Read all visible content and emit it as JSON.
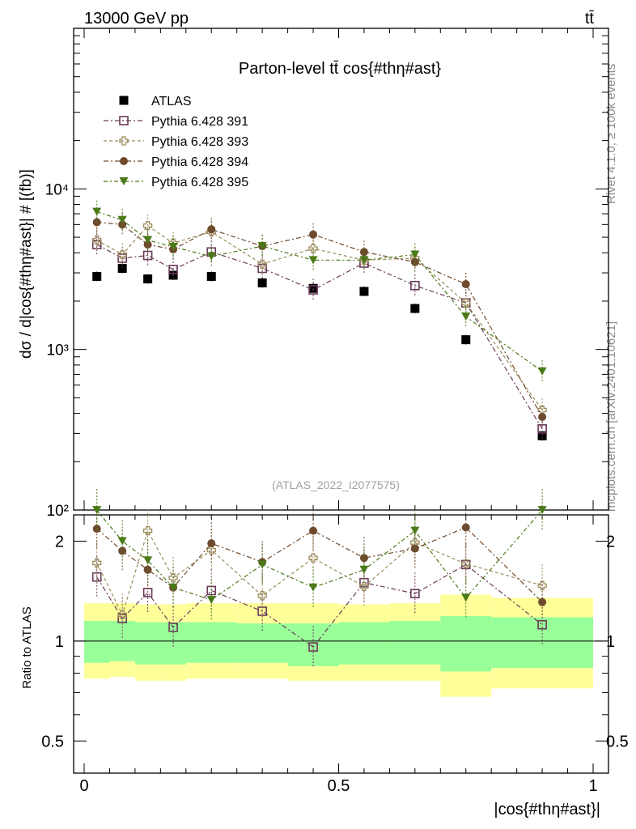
{
  "header": {
    "left": "13000 GeV pp",
    "right": "tt̄"
  },
  "side_labels": {
    "rivet": "Rivet 4.1.0, ≥ 100k events",
    "mcplots": "mcplots.cern.ch [arXiv:2401.10621]"
  },
  "chart_data": {
    "type": "scatter",
    "title": "Parton-level tt̄ cos{#thη#ast}",
    "watermark": "(ATLAS_2022_I2077575)",
    "xlabel": "|cos{#thη#ast}|",
    "ylabel": "dσ / d|cos{#thη#ast}| # [(fb)]",
    "ratio_ylabel": "Ratio to ATLAS",
    "xlim": [
      0,
      1
    ],
    "ylim": [
      100,
      100000
    ],
    "ratio_ylim": [
      0.4,
      2.4
    ],
    "yscale": "log",
    "legend_position": "top-left",
    "x_ticks": [
      {
        "v": 0,
        "label": "0"
      },
      {
        "v": 0.5,
        "label": "0.5"
      },
      {
        "v": 1,
        "label": "1"
      }
    ],
    "y_ticks": [
      {
        "v": 100,
        "label": "10²"
      },
      {
        "v": 1000,
        "label": "10³"
      },
      {
        "v": 10000,
        "label": "10⁴"
      }
    ],
    "ratio_ticks": [
      {
        "v": 0.5,
        "label": "0.5"
      },
      {
        "v": 1,
        "label": "1"
      },
      {
        "v": 2,
        "label": "2"
      }
    ],
    "bin_edges": [
      0,
      0.05,
      0.1,
      0.15,
      0.2,
      0.3,
      0.4,
      0.5,
      0.6,
      0.7,
      0.8,
      1.0
    ],
    "x": [
      0.025,
      0.075,
      0.125,
      0.175,
      0.25,
      0.35,
      0.45,
      0.55,
      0.65,
      0.75,
      0.9
    ],
    "data": {
      "name": "ATLAS",
      "values": [
        2850,
        3200,
        2750,
        2900,
        2850,
        2600,
        2400,
        2300,
        1800,
        1150,
        290
      ],
      "band_inner": [
        [
          0.86,
          1.15
        ],
        [
          0.87,
          1.15
        ],
        [
          0.85,
          1.14
        ],
        [
          0.85,
          1.14
        ],
        [
          0.86,
          1.14
        ],
        [
          0.86,
          1.13
        ],
        [
          0.84,
          1.13
        ],
        [
          0.85,
          1.14
        ],
        [
          0.85,
          1.15
        ],
        [
          0.81,
          1.19
        ],
        [
          0.83,
          1.18
        ]
      ],
      "band_outer": [
        [
          0.77,
          1.3
        ],
        [
          0.78,
          1.3
        ],
        [
          0.76,
          1.29
        ],
        [
          0.76,
          1.29
        ],
        [
          0.77,
          1.3
        ],
        [
          0.77,
          1.3
        ],
        [
          0.76,
          1.3
        ],
        [
          0.76,
          1.29
        ],
        [
          0.76,
          1.3
        ],
        [
          0.68,
          1.38
        ],
        [
          0.72,
          1.35
        ]
      ]
    },
    "series": [
      {
        "name": "Pythia 6.428 391",
        "color": "#6b3a5a",
        "marker": "open-square",
        "values": [
          4500,
          3700,
          3850,
          3150,
          4050,
          3200,
          2350,
          3450,
          2500,
          1950,
          320
        ],
        "ratio": [
          1.56,
          1.17,
          1.4,
          1.1,
          1.42,
          1.23,
          0.96,
          1.5,
          1.39,
          1.7,
          1.12
        ]
      },
      {
        "name": "Pythia 6.428 393",
        "color": "#9c8c5a",
        "marker": "open-cross",
        "values": [
          4800,
          3900,
          5900,
          4600,
          5400,
          3400,
          4250,
          3600,
          3700,
          1950,
          420
        ],
        "ratio": [
          1.72,
          1.2,
          2.15,
          1.55,
          1.88,
          1.37,
          1.78,
          1.46,
          1.98,
          1.71,
          1.47
        ]
      },
      {
        "name": "Pythia 6.428 394",
        "color": "#6e4a2e",
        "marker": "filled-circle",
        "values": [
          6200,
          6000,
          4500,
          4200,
          5600,
          4400,
          5200,
          4050,
          3500,
          2550,
          380
        ],
        "ratio": [
          2.18,
          1.87,
          1.64,
          1.45,
          1.97,
          1.73,
          2.15,
          1.78,
          1.9,
          2.2,
          1.31
        ]
      },
      {
        "name": "Pythia 6.428 395",
        "color": "#4a7a18",
        "marker": "filled-triangle",
        "values": [
          7200,
          6400,
          4800,
          4350,
          3800,
          4400,
          3600,
          3600,
          3900,
          1600,
          730
        ],
        "ratio": [
          2.5,
          2.0,
          1.75,
          1.45,
          1.33,
          1.7,
          1.45,
          1.64,
          2.15,
          1.35,
          2.48
        ]
      }
    ]
  }
}
